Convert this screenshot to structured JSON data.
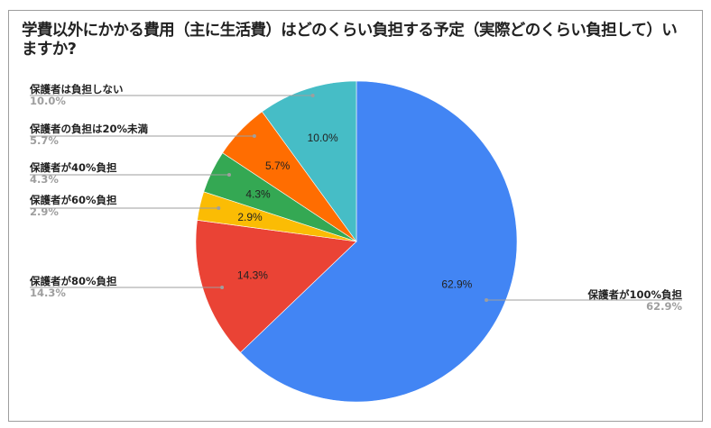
{
  "chart_data": {
    "type": "pie",
    "title": "学費以外にかかる費用（主に生活費）はどのくらい負担する予定（実際どのくらい負担して）いますか?",
    "categories": [
      "保護者が100%負担",
      "保護者が80%負担",
      "保護者が60%負担",
      "保護者が40%負担",
      "保護者の負担は20%未満",
      "保護者は負担しない"
    ],
    "values": [
      62.9,
      14.3,
      2.9,
      4.3,
      5.7,
      10.0
    ],
    "labels": [
      "62.9%",
      "14.3%",
      "2.9%",
      "4.3%",
      "5.7%",
      "10.0%"
    ],
    "colors": [
      "#4285f4",
      "#ea4335",
      "#fbbc04",
      "#34a853",
      "#ff6d01",
      "#46bdc6"
    ],
    "legend_position": "labeled"
  },
  "title": "学費以外にかかる費用（主に生活費）はどのくらい負担する予定（実際どのくらい負担して）いますか?",
  "legend": [
    {
      "name": "保護者は負担しない",
      "pct": "10.0%"
    },
    {
      "name": "保護者の負担は20%未満",
      "pct": "5.7%"
    },
    {
      "name": "保護者が40%負担",
      "pct": "4.3%"
    },
    {
      "name": "保護者が60%負担",
      "pct": "2.9%"
    },
    {
      "name": "保護者が80%負担",
      "pct": "14.3%"
    },
    {
      "name": "保護者が100%負担",
      "pct": "62.9%"
    }
  ],
  "slice_labels": [
    "10.0%",
    "5.7%",
    "4.3%",
    "2.9%",
    "14.3%",
    "62.9%"
  ]
}
